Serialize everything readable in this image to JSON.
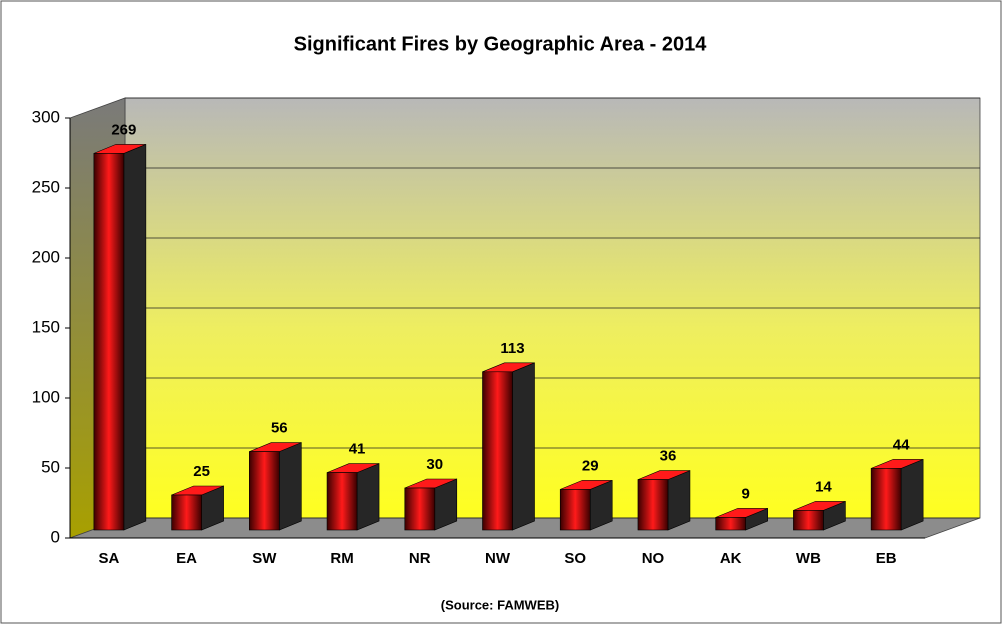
{
  "chart_data": {
    "type": "bar3d",
    "title": "Significant Fires by Geographic Area - 2014",
    "source": "(Source: FAMWEB)",
    "categories": [
      "SA",
      "EA",
      "SW",
      "RM",
      "NR",
      "NW",
      "SO",
      "NO",
      "AK",
      "WB",
      "EB"
    ],
    "values": [
      269,
      25,
      56,
      41,
      30,
      113,
      29,
      36,
      9,
      14,
      44
    ],
    "color": "#ff1a1a",
    "ylim": [
      0,
      300
    ],
    "yticks": [
      0,
      50,
      100,
      150,
      200,
      250,
      300
    ],
    "grid": true
  }
}
